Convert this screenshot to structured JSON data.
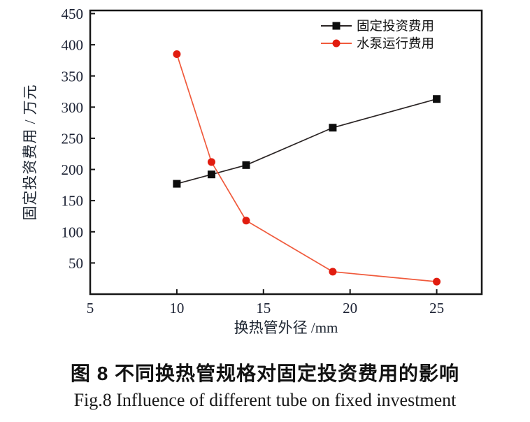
{
  "captions": {
    "chinese": "图 8  不同换热管规格对固定投资费用的影响",
    "english": "Fig.8  Influence of different tube on fixed investment"
  },
  "chart_data": {
    "type": "line",
    "title": "",
    "x": [
      10,
      12,
      14,
      19,
      25
    ],
    "series": [
      {
        "name": "固定投资费用",
        "values": [
          177,
          192,
          207,
          267,
          313
        ],
        "marker": "square",
        "marker_color": "#0d0d0d",
        "line_color": "#2a2424"
      },
      {
        "name": "水泵运行费用",
        "values": [
          385,
          212,
          118,
          36,
          20
        ],
        "marker": "circle",
        "marker_color": "#e11c0f",
        "line_color": "#f05a3c"
      }
    ],
    "xlabel": "换热管外径 /mm",
    "ylabel": "固定投资费用 / 万元",
    "xlim": [
      5,
      27.6
    ],
    "ylim": [
      0,
      455
    ],
    "x_ticks": [
      5,
      10,
      15,
      20,
      25
    ],
    "y_ticks": [
      50,
      100,
      150,
      200,
      250,
      300,
      350,
      400,
      450
    ],
    "grid": false,
    "legend_position": "top-right-inside",
    "axis_color": "#161616",
    "tick_label_color": "#1b2133"
  }
}
